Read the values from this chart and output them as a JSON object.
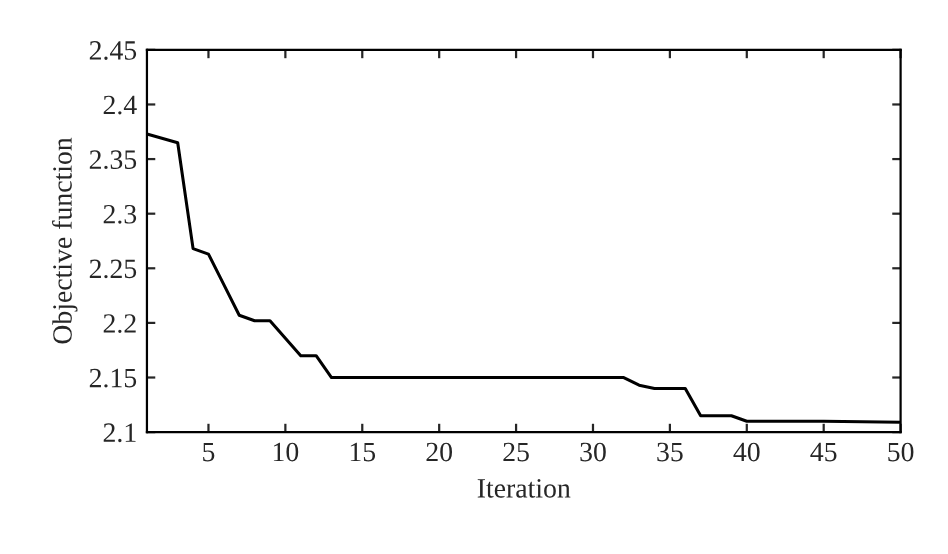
{
  "chart_data": {
    "type": "line",
    "xlabel": "Iteration",
    "ylabel": "Objective function",
    "series": [
      {
        "color": "#000000",
        "x": [
          1,
          3,
          4,
          5,
          6,
          7,
          8,
          9,
          10,
          11,
          12,
          13,
          20,
          32,
          33,
          34,
          36,
          37,
          39,
          40,
          45,
          50
        ],
        "values": [
          2.373,
          2.365,
          2.268,
          2.263,
          2.235,
          2.207,
          2.202,
          2.202,
          2.186,
          2.17,
          2.17,
          2.15,
          2.15,
          2.15,
          2.143,
          2.14,
          2.14,
          2.115,
          2.115,
          2.11,
          2.11,
          2.109
        ]
      }
    ],
    "xlim": [
      1,
      50
    ],
    "ylim": [
      2.1,
      2.45
    ],
    "xticks": [
      5,
      10,
      15,
      20,
      25,
      30,
      35,
      40,
      45,
      50
    ],
    "yticks": [
      {
        "value": 2.1,
        "label": "2.1"
      },
      {
        "value": 2.15,
        "label": "2.15"
      },
      {
        "value": 2.2,
        "label": "2.2"
      },
      {
        "value": 2.25,
        "label": "2.25"
      },
      {
        "value": 2.3,
        "label": "2.3"
      },
      {
        "value": 2.35,
        "label": "2.35"
      },
      {
        "value": 2.4,
        "label": "2.4"
      },
      {
        "value": 2.45,
        "label": "2.45"
      }
    ],
    "grid": false,
    "marker": "none",
    "line_style": "solid"
  }
}
